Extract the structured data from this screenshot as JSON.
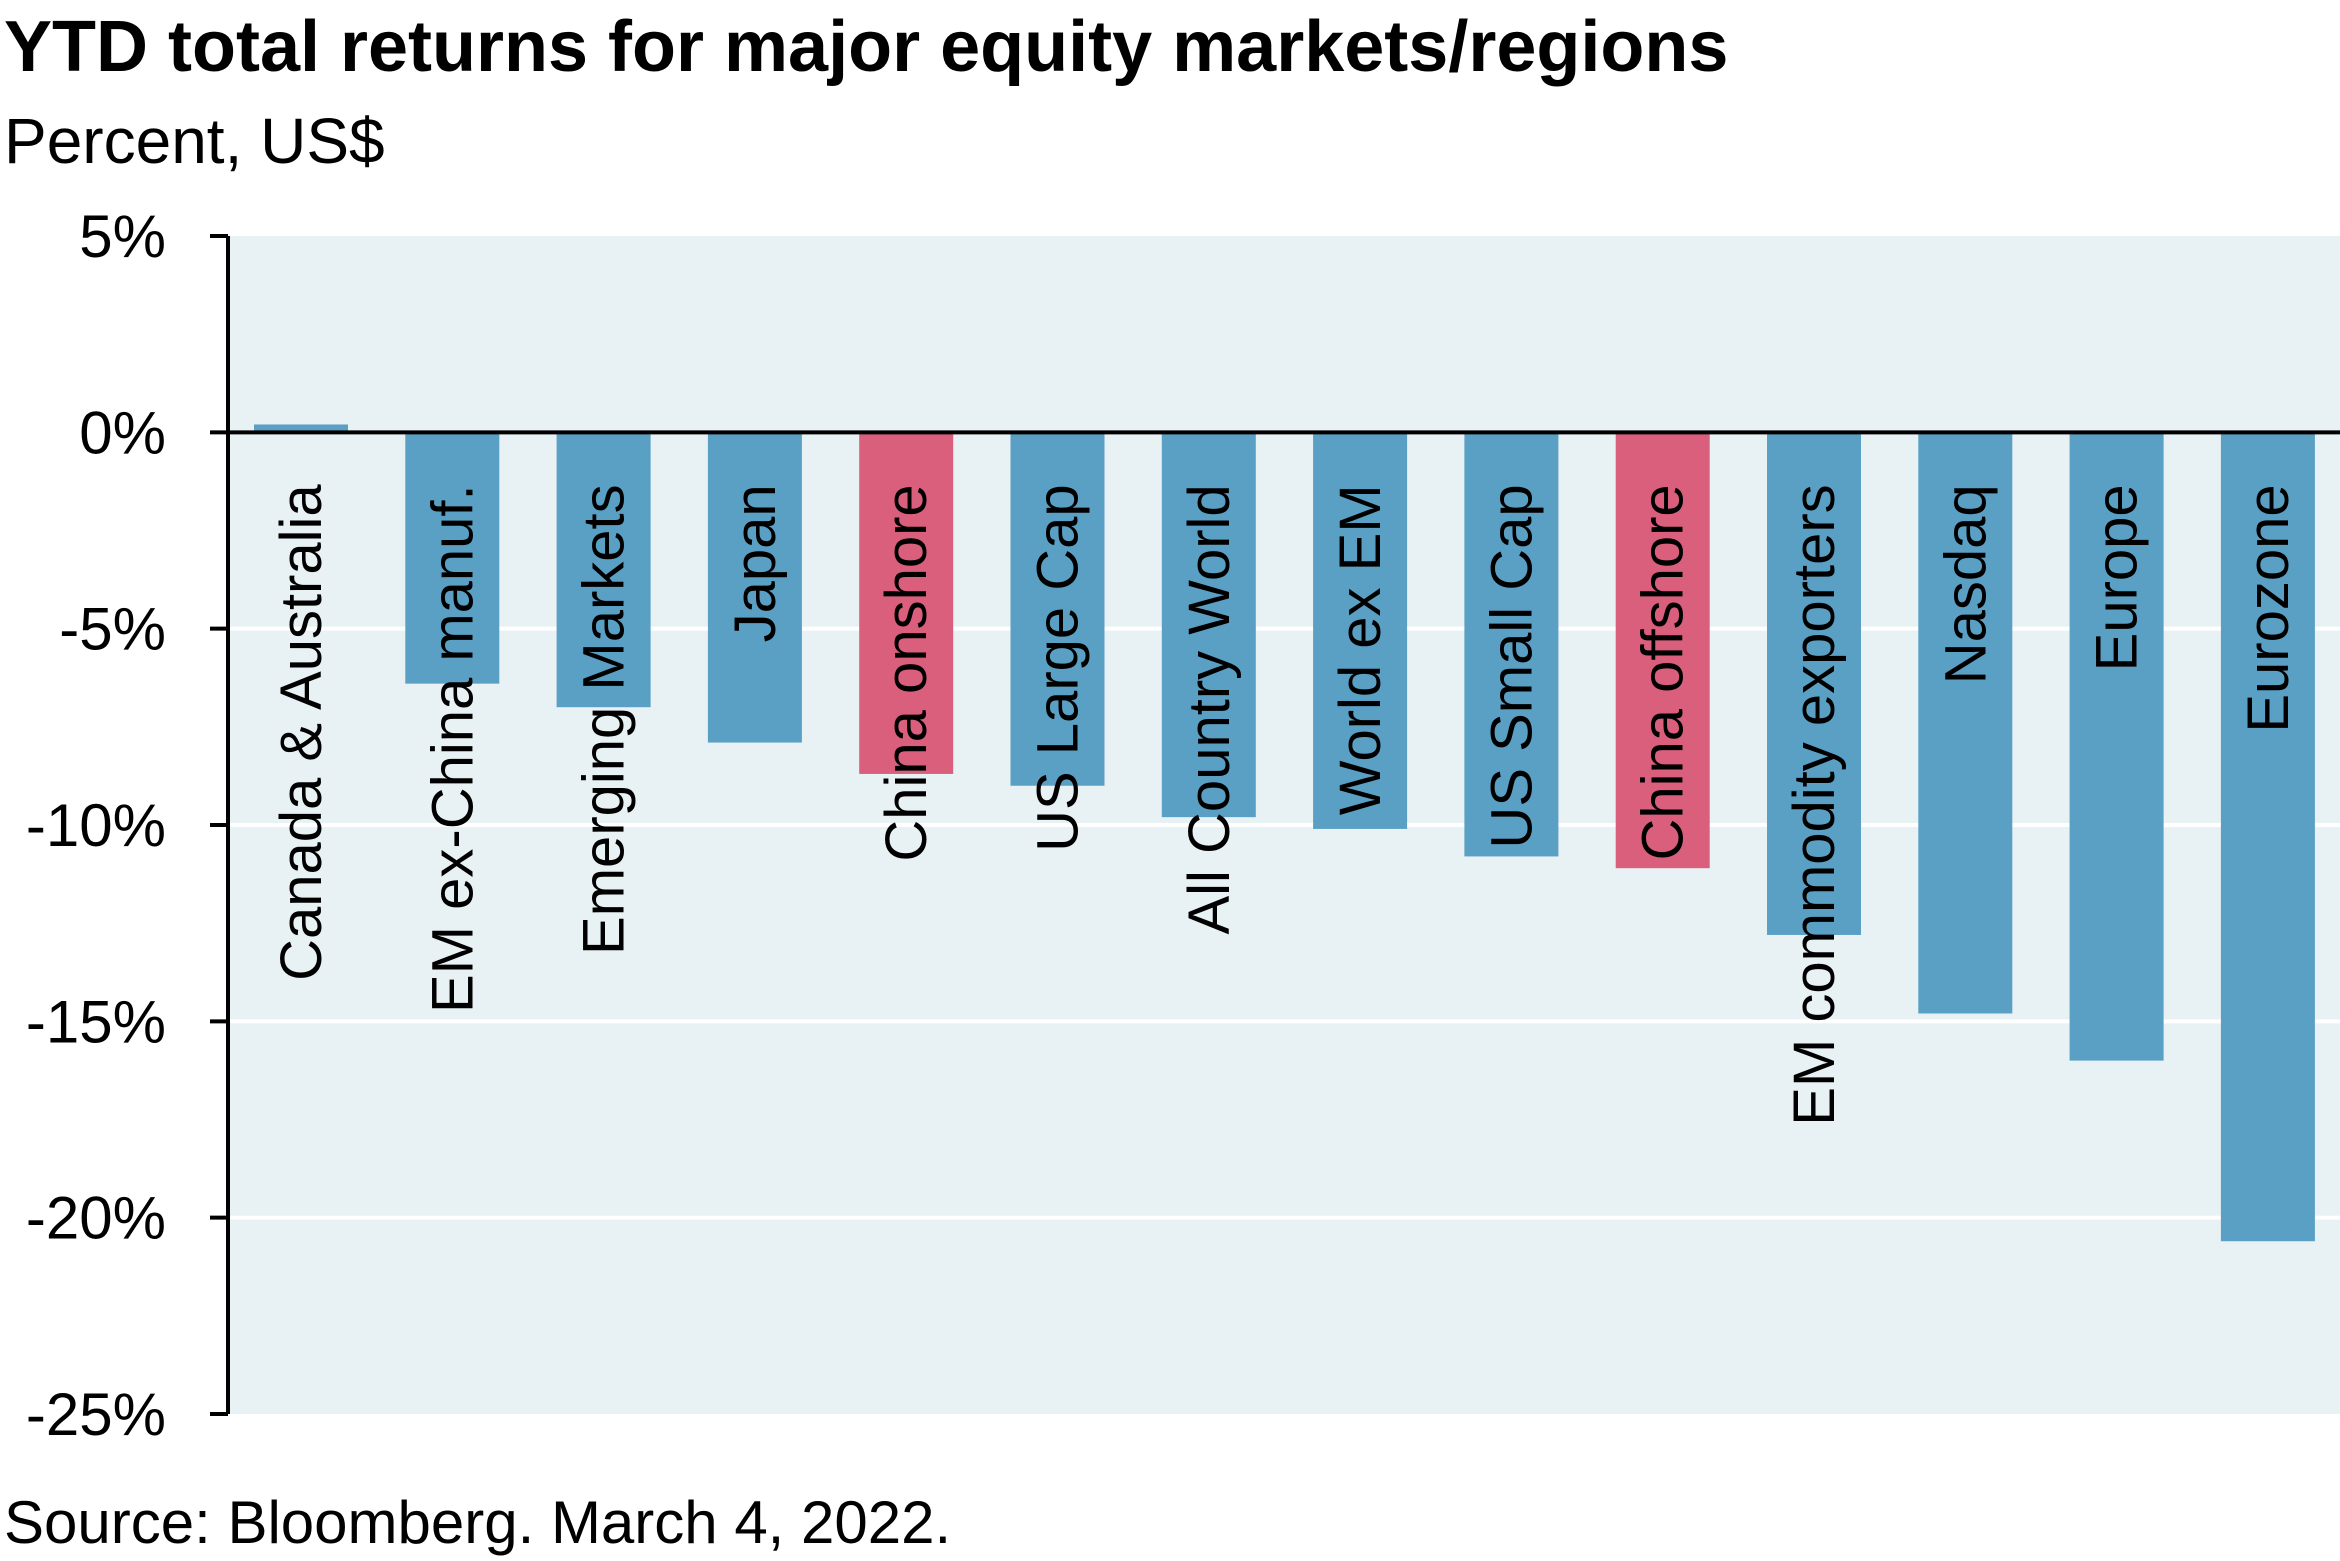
{
  "title": "YTD total returns for major equity markets/regions",
  "subtitle": "Percent, US$",
  "source": "Source: Bloomberg. March 4, 2022.",
  "chart_data": {
    "type": "bar",
    "title": "YTD total returns for major equity markets/regions",
    "ylabel": "Percent, US$",
    "xlabel": "",
    "ylim": [
      -25,
      5
    ],
    "yticks": [
      5,
      0,
      -5,
      -10,
      -15,
      -20,
      -25
    ],
    "ytick_labels": [
      "5%",
      "0%",
      "-5%",
      "-10%",
      "-15%",
      "-20%",
      "-25%"
    ],
    "grid": true,
    "categories": [
      "Canada & Australia",
      "EM ex-China manuf.",
      "Emerging Markets",
      "Japan",
      "China onshore",
      "US Large Cap",
      "All Country World",
      "World ex EM",
      "US Small Cap",
      "China offshore",
      "EM commodity exporters",
      "Nasdaq",
      "Europe",
      "Eurozone"
    ],
    "values": [
      0.2,
      -6.4,
      -7.0,
      -7.9,
      -8.7,
      -9.0,
      -9.8,
      -10.1,
      -10.8,
      -11.1,
      -12.8,
      -14.8,
      -16.0,
      -20.6
    ],
    "highlight": [
      false,
      false,
      false,
      false,
      true,
      false,
      false,
      false,
      false,
      true,
      false,
      false,
      false,
      false
    ],
    "colors": {
      "bar": "#5a9fc4",
      "highlight": "#d95f7d",
      "plot_bg": "#e8f1f4",
      "grid": "#ffffff",
      "axis": "#000000"
    }
  }
}
